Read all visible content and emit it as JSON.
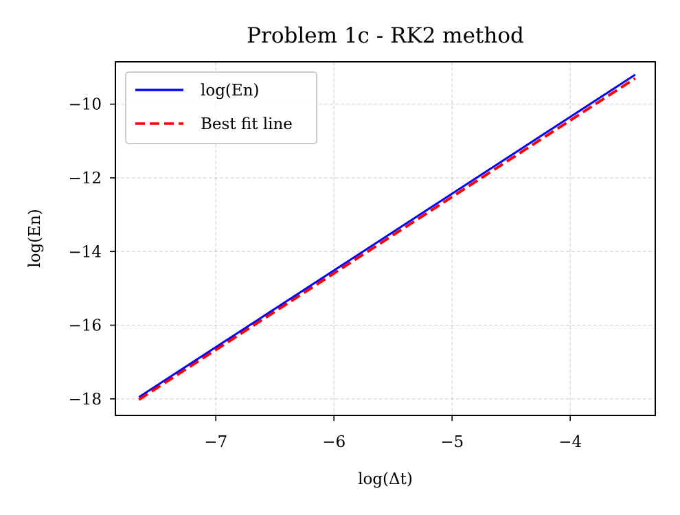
{
  "chart_data": {
    "type": "line",
    "title": "Problem 1c - RK2 method",
    "xlabel": "log(Δt)",
    "ylabel": "log(En)",
    "xlim": [
      -7.85,
      -3.28
    ],
    "ylim": [
      -18.45,
      -8.85
    ],
    "xticks": [
      -7,
      -6,
      -5,
      -4
    ],
    "yticks": [
      -18,
      -16,
      -14,
      -12,
      -10
    ],
    "tick_labels": {
      "x": [
        "−7",
        "−6",
        "−5",
        "−4"
      ],
      "y": [
        "−18",
        "−16",
        "−14",
        "−12",
        "−10"
      ]
    },
    "grid": true,
    "legend_position": "upper-left",
    "series": [
      {
        "name": "log(En)",
        "style": "solid",
        "color": "#0000ff",
        "x": [
          -7.65,
          -3.45
        ],
        "y": [
          -17.95,
          -9.2
        ]
      },
      {
        "name": "Best fit line",
        "style": "dashed",
        "color": "#ff0000",
        "x": [
          -7.65,
          -3.45
        ],
        "y": [
          -18.02,
          -9.3
        ]
      }
    ]
  }
}
